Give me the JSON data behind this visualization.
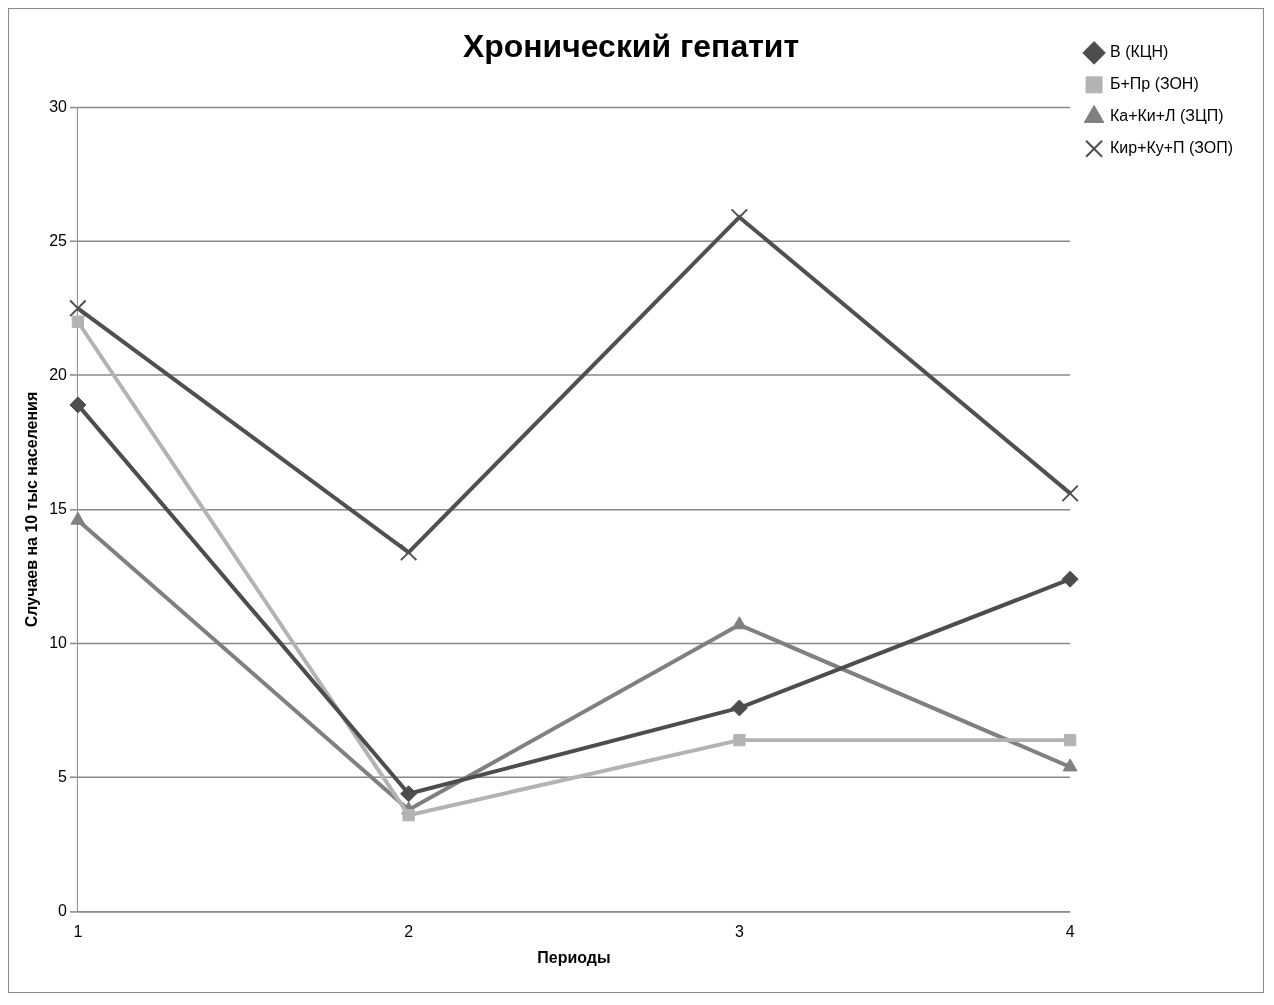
{
  "chart_data": {
    "type": "line",
    "title": "Хронический гепатит",
    "xlabel": "Периоды",
    "ylabel": "Случаев на 10 тыс населения",
    "categories": [
      "1",
      "2",
      "3",
      "4"
    ],
    "series": [
      {
        "name": "В (КЦН)",
        "color": "#4d4d4d",
        "marker": "diamond",
        "values": [
          18.9,
          4.4,
          7.6,
          12.4
        ]
      },
      {
        "name": "Б+Пр (ЗОН)",
        "color": "#b3b3b3",
        "marker": "square",
        "values": [
          22.0,
          3.6,
          6.4,
          6.4
        ]
      },
      {
        "name": "Ка+Ки+Л (ЗЦП)",
        "color": "#808080",
        "marker": "triangle",
        "values": [
          14.6,
          3.8,
          10.7,
          5.4
        ]
      },
      {
        "name": "Кир+Ку+П (ЗОП)",
        "color": "#505050",
        "marker": "cross",
        "values": [
          22.5,
          13.4,
          25.9,
          15.6
        ]
      }
    ],
    "ylim": [
      0,
      30
    ],
    "yticks": [
      0,
      5,
      10,
      15,
      20,
      25,
      30
    ],
    "grid": "y",
    "legend": "right",
    "line_style": "solid"
  }
}
